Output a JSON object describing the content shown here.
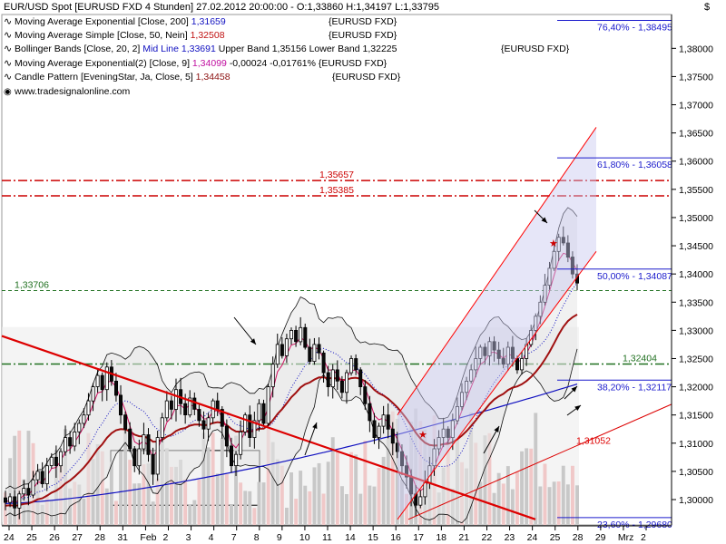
{
  "window": {
    "title": "EUR/USD Spot [EURUSD FXD  4 Stunden] 27.02.2012 20:00:00 - O:1,33860 H:1,34197 L:1,33795",
    "corner_symbol": "$"
  },
  "legend": {
    "rows": [
      {
        "prefix": "Moving Average Exponential [Close, 200]",
        "value": "1,31659",
        "value_color": "#1010c0",
        "extra": "",
        "tag": "{EURUSD FXD}"
      },
      {
        "prefix": "Moving Average Simple [Close, 50, Nein]",
        "value": "1,32508",
        "value_color": "#c01010",
        "extra": "",
        "tag": "{EURUSD FXD}"
      },
      {
        "prefix": "Bollinger Bands [Close, 20, 2]",
        "value": "Mid Line 1,33691",
        "value_color": "#1010c0",
        "extra": "Upper Band 1,35156 Lower Band 1,32225",
        "tag": "{EURUSD FXD}"
      },
      {
        "prefix": "Moving Average Exponential(2) [Close, 9]",
        "value": "1,34099",
        "value_color": "#c010a0",
        "extra": "-0,00024 -0,01761%",
        "tag": "{EURUSD FXD}"
      },
      {
        "prefix": "Candle Pattern [EveningStar, Ja, Close, 5]",
        "value": "1,34458",
        "value_color": "#8b1010",
        "extra": "",
        "tag": "{EURUSD FXD}"
      }
    ],
    "website": "www.tradesignalonline.com"
  },
  "colors": {
    "candle_fill": "#0a0a0a",
    "ema200": "#1010c0",
    "sma50": "#a01010",
    "bollinger_band": "#111111",
    "ema9": "#d01060",
    "channel": "#ff0000",
    "trendline": "#dd0000",
    "resistance": "#cc0000",
    "support": "#207020",
    "fib": "#1a1acc",
    "volume_up": "#f0c8c8",
    "volume_down": "#c8c8c8"
  },
  "chart_data": {
    "type": "candlestick",
    "symbol": "EUR/USD Spot",
    "timeframe": "4 Stunden",
    "y_axis": {
      "min": 1.2955,
      "max": 1.386,
      "ticks": [
        "1,30000",
        "1,30500",
        "1,31000",
        "1,31500",
        "1,32000",
        "1,32500",
        "1,33000",
        "1,33500",
        "1,34000",
        "1,34500",
        "1,35000",
        "1,35500",
        "1,36000",
        "1,36500",
        "1,37000",
        "1,37500",
        "1,38000"
      ],
      "tick_values": [
        1.3,
        1.305,
        1.31,
        1.315,
        1.32,
        1.325,
        1.33,
        1.335,
        1.34,
        1.345,
        1.35,
        1.355,
        1.36,
        1.365,
        1.37,
        1.375,
        1.38
      ]
    },
    "x_axis": {
      "labels": [
        "24",
        "25",
        "26",
        "27",
        "28",
        "31",
        "Feb",
        "2",
        "3",
        "4",
        "7",
        "8",
        "9",
        "10",
        "11",
        "14",
        "15",
        "16",
        "17",
        "18",
        "21",
        "22",
        "23",
        "24",
        "25",
        "28",
        "29",
        "Mrz",
        "2"
      ]
    },
    "horizontal_lines": [
      {
        "label": "1,35657",
        "value": 1.35657,
        "style": "dashdot",
        "color": "#cc0000"
      },
      {
        "label": "1,35385",
        "value": 1.35385,
        "style": "dashdot",
        "color": "#cc0000"
      },
      {
        "label": "1,33706",
        "value": 1.33706,
        "style": "dash",
        "color": "#207020"
      },
      {
        "label": "1,32404",
        "value": 1.32404,
        "style": "dashdot",
        "color": "#207020"
      }
    ],
    "fibonacci": [
      {
        "label": "76,40% - 1,38495",
        "value": 1.38495
      },
      {
        "label": "61,80% - 1,36058",
        "value": 1.36058
      },
      {
        "label": "50,00% - 1,34087",
        "value": 1.34087
      },
      {
        "label": "38,20% - 1,32117",
        "value": 1.32117
      },
      {
        "label": "23,60% - 1,29680",
        "value": 1.2968
      }
    ],
    "trendline_label": "1,31052",
    "closes": [
      1.2995,
      1.3005,
      1.2985,
      1.301,
      1.302,
      1.3008,
      1.3035,
      1.305,
      1.3028,
      1.306,
      1.3075,
      1.306,
      1.3085,
      1.311,
      1.3095,
      1.312,
      1.3135,
      1.315,
      1.3175,
      1.32,
      1.322,
      1.3195,
      1.3235,
      1.321,
      1.3185,
      1.315,
      1.3125,
      1.309,
      1.306,
      1.309,
      1.3115,
      1.308,
      1.3045,
      1.311,
      1.3145,
      1.3175,
      1.316,
      1.3195,
      1.317,
      1.315,
      1.318,
      1.316,
      1.314,
      1.3125,
      1.3145,
      1.3175,
      1.316,
      1.313,
      1.3095,
      1.306,
      1.308,
      1.312,
      1.315,
      1.311,
      1.314,
      1.317,
      1.3135,
      1.32,
      1.324,
      1.3275,
      1.3255,
      1.3285,
      1.33,
      1.328,
      1.3305,
      1.327,
      1.3245,
      1.3275,
      1.326,
      1.3225,
      1.32,
      1.323,
      1.321,
      1.319,
      1.3225,
      1.325,
      1.323,
      1.32,
      1.317,
      1.314,
      1.311,
      1.313,
      1.315,
      1.3125,
      1.31,
      1.3085,
      1.306,
      1.304,
      1.301,
      1.299,
      1.3005,
      1.303,
      1.306,
      1.309,
      1.311,
      1.3125,
      1.311,
      1.314,
      1.3165,
      1.319,
      1.321,
      1.323,
      1.325,
      1.327,
      1.3255,
      1.328,
      1.3265,
      1.325,
      1.324,
      1.327,
      1.325,
      1.323,
      1.325,
      1.3275,
      1.33,
      1.3325,
      1.335,
      1.338,
      1.341,
      1.344,
      1.3465,
      1.3455,
      1.343,
      1.34,
      1.3384
    ]
  }
}
